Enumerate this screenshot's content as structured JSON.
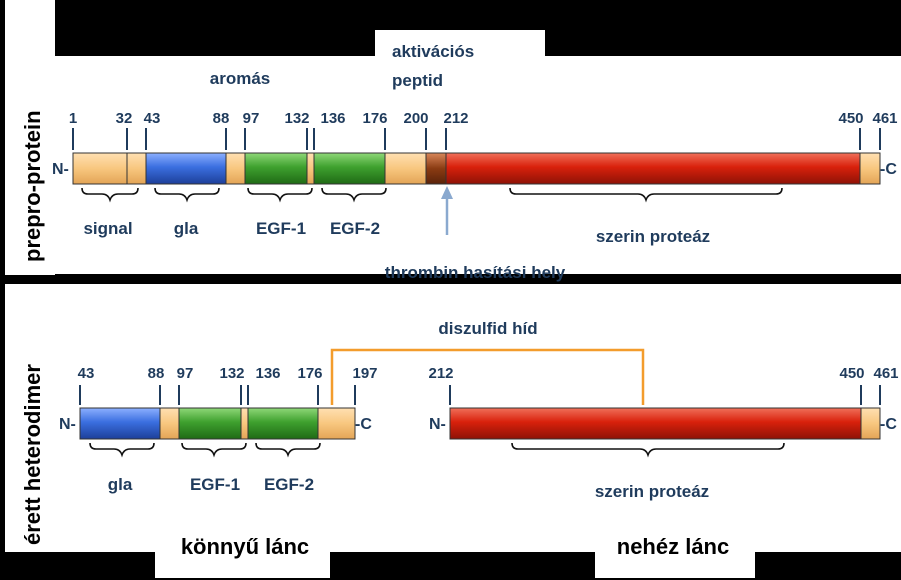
{
  "side_labels": {
    "top": "prepro-protein",
    "bottom": "érett heterodimer"
  },
  "top": {
    "n_label": "N-",
    "c_label": "-C",
    "ticks": [
      "1",
      "32",
      "43",
      "88",
      "97",
      "132",
      "136",
      "176",
      "200",
      "212",
      "450",
      "461"
    ],
    "domains": {
      "signal": "signal",
      "gla": "gla",
      "egf1": "EGF-1",
      "egf2": "EGF-2",
      "serin": "szerin proteáz"
    },
    "aromas": "aromás",
    "activation_line1": "aktivációs",
    "activation_line2": "peptid",
    "thrombin": "thrombin  hasítási hely"
  },
  "bottom": {
    "n_label_light": "N-",
    "c_label_light": "-C",
    "n_label_heavy": "N-",
    "c_label_heavy": "-C",
    "ticks_light": [
      "43",
      "88",
      "97",
      "132",
      "136",
      "176",
      "197"
    ],
    "ticks_heavy": [
      "212",
      "450",
      "461"
    ],
    "domains": {
      "gla": "gla",
      "egf1": "EGF-1",
      "egf2": "EGF-2",
      "serin": "szerin proteáz"
    },
    "disulfide": "diszulfid  híd",
    "light_chain": "könnyű lánc",
    "heavy_chain": "nehéz lánc"
  },
  "colors": {
    "orange": "#f8c77f",
    "blue": "#3b6fe0",
    "green": "#3fa12f",
    "red": "#d9210c",
    "brown": "#8a3b12",
    "text": "#1f3b5c",
    "bridge": "#f39c2c",
    "arrow": "#8aa9cf"
  }
}
